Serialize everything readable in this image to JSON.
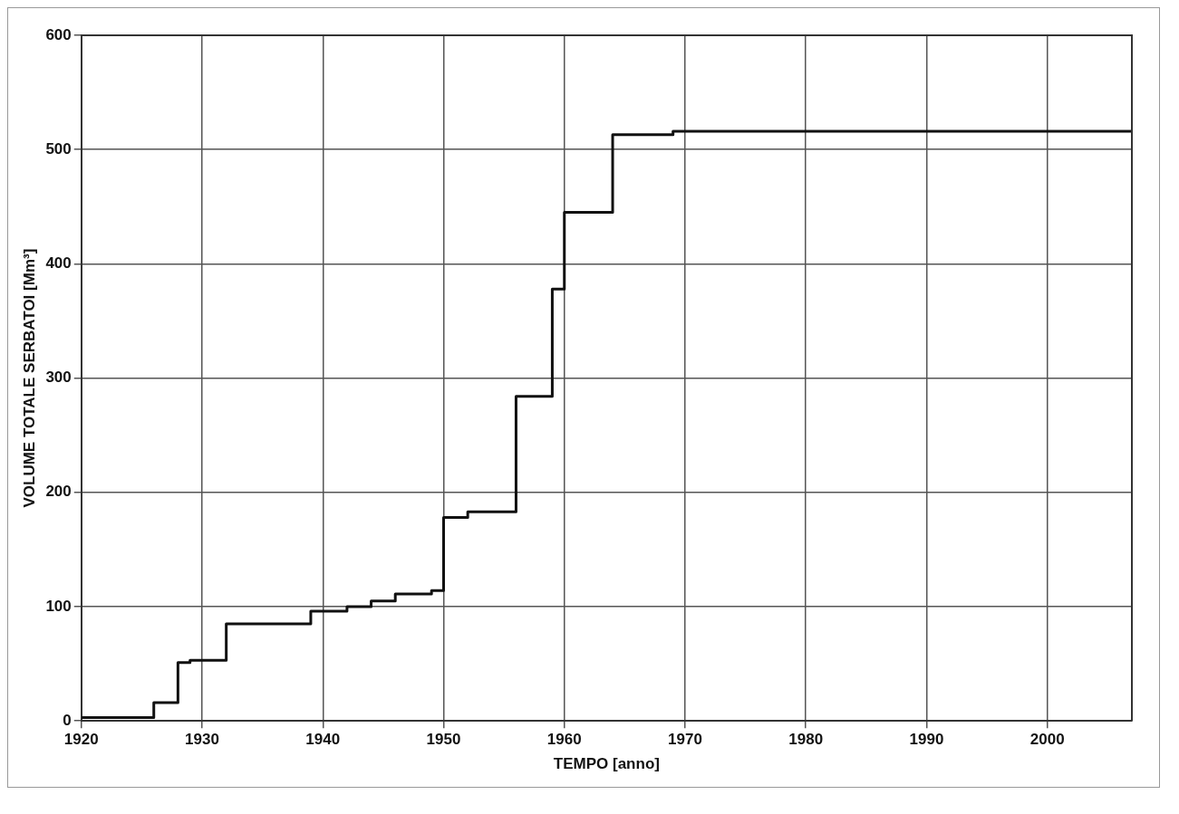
{
  "chart_data": {
    "type": "step",
    "xlabel": "TEMPO [anno]",
    "ylabel": "VOLUME TOTALE SERBATOI [Mm³]",
    "x": [
      1920,
      1926,
      1928,
      1929,
      1932,
      1939,
      1942,
      1944,
      1946,
      1949,
      1950,
      1952,
      1956,
      1959,
      1960,
      1964,
      1969,
      2007
    ],
    "series": [
      {
        "color": "#111111",
        "values": [
          3,
          16,
          51,
          53,
          85,
          96,
          100,
          105,
          111,
          114,
          178,
          183,
          284,
          378,
          445,
          513,
          516,
          516
        ]
      }
    ],
    "xlim": [
      1920,
      2007
    ],
    "xticks": [
      1920,
      1930,
      1940,
      1950,
      1960,
      1970,
      1980,
      1990,
      2000
    ],
    "ylim": [
      0,
      600
    ],
    "yticks": [
      0,
      100,
      200,
      300,
      400,
      500,
      600
    ],
    "grid": true,
    "legend": false,
    "marker": "none",
    "line_style": "solid"
  }
}
